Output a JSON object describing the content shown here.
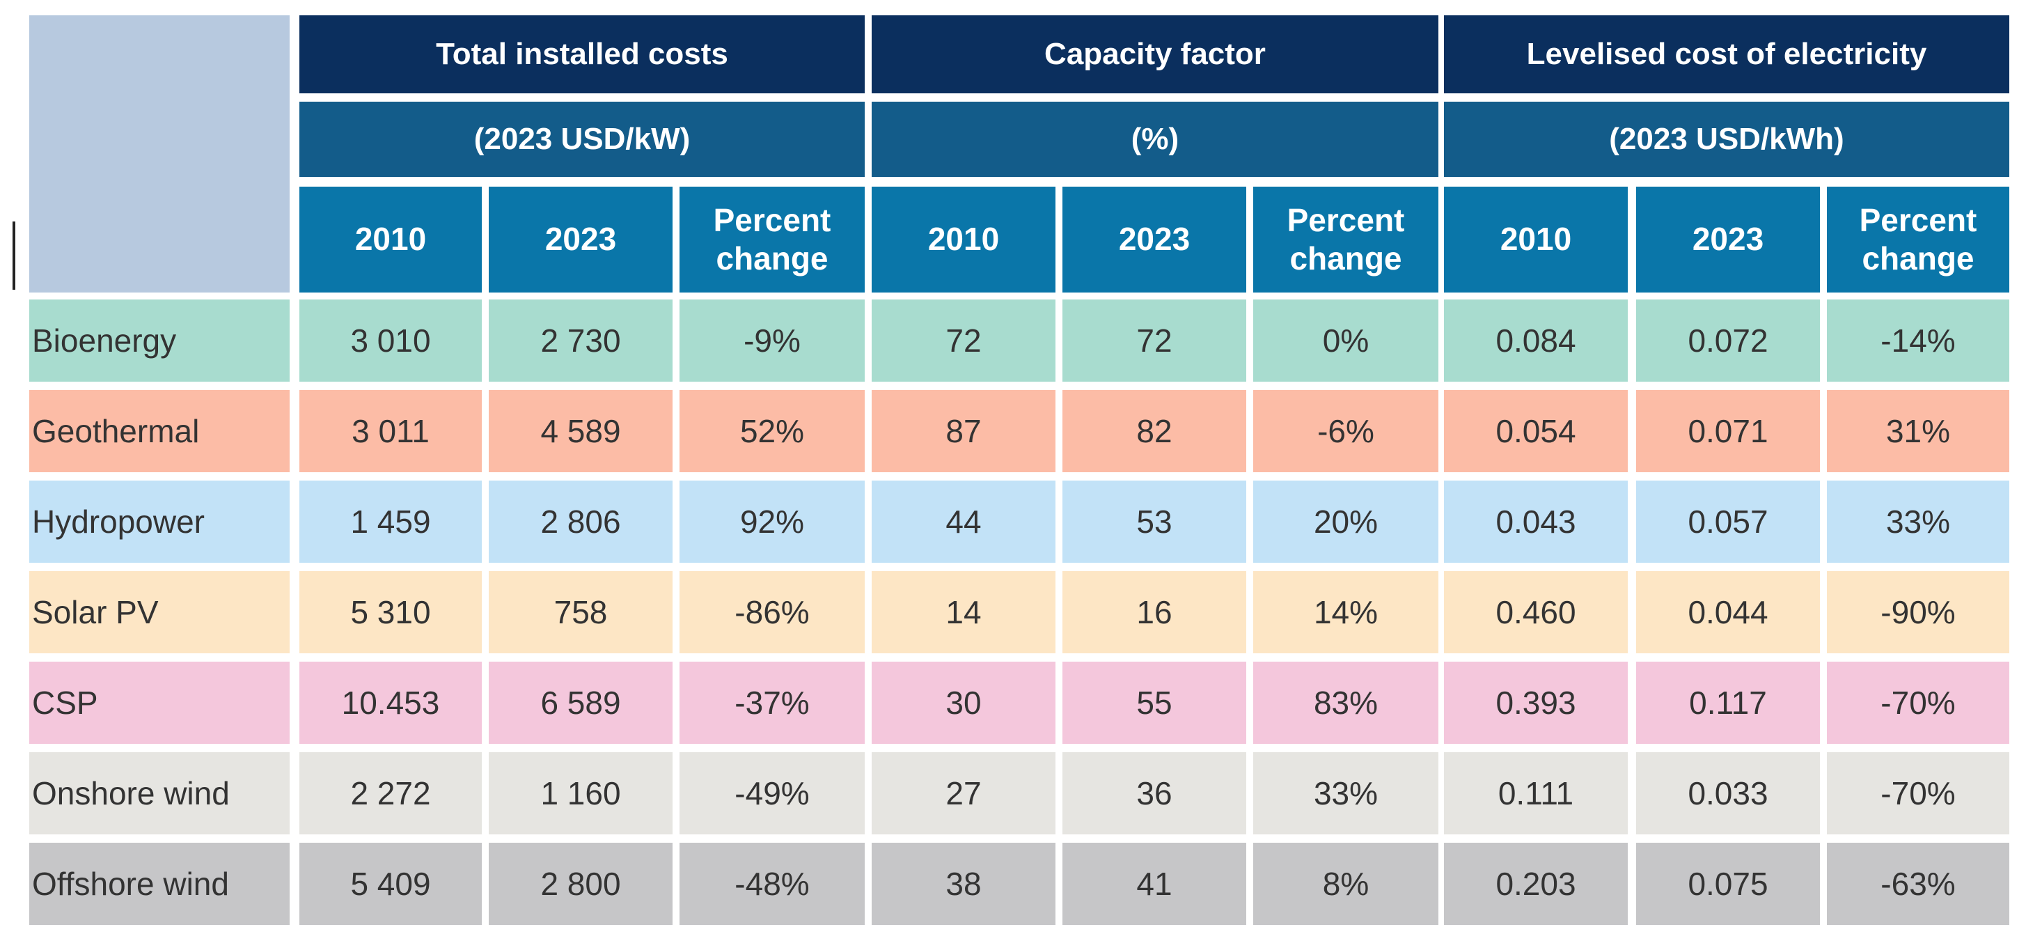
{
  "chart_data": {
    "type": "table",
    "groups": [
      {
        "title": "Total installed costs",
        "unit": "(2023 USD/kW)"
      },
      {
        "title": "Capacity factor",
        "unit": "(%)"
      },
      {
        "title": "Levelised cost of electricity",
        "unit": "(2023 USD/kWh)"
      }
    ],
    "subheaders": [
      "2010",
      "2023",
      "Percent change"
    ],
    "rows": [
      {
        "label": "Bioenergy",
        "color": "#a8dccf",
        "values": [
          "3 010",
          "2 730",
          "-9%",
          "72",
          "72",
          "0%",
          "0.084",
          "0.072",
          "-14%"
        ]
      },
      {
        "label": "Geothermal",
        "color": "#fcbca6",
        "values": [
          "3 011",
          "4 589",
          "52%",
          "87",
          "82",
          "-6%",
          "0.054",
          "0.071",
          "31%"
        ]
      },
      {
        "label": "Hydropower",
        "color": "#c2e2f7",
        "values": [
          "1 459",
          "2 806",
          "92%",
          "44",
          "53",
          "20%",
          "0.043",
          "0.057",
          "33%"
        ]
      },
      {
        "label": "Solar PV",
        "color": "#fde6c5",
        "values": [
          "5 310",
          "758",
          "-86%",
          "14",
          "16",
          "14%",
          "0.460",
          "0.044",
          "-90%"
        ]
      },
      {
        "label": "CSP",
        "color": "#f4c7dc",
        "values": [
          "10.453",
          "6 589",
          "-37%",
          "30",
          "55",
          "83%",
          "0.393",
          "0.117",
          "-70%"
        ]
      },
      {
        "label": "Onshore wind",
        "color": "#e6e5e1",
        "values": [
          "2 272",
          "1 160",
          "-49%",
          "27",
          "36",
          "33%",
          "0.111",
          "0.033",
          "-70%"
        ]
      },
      {
        "label": "Offshore wind",
        "color": "#c6c6c8",
        "values": [
          "5 409",
          "2 800",
          "-48%",
          "38",
          "41",
          "8%",
          "0.203",
          "0.075",
          "-63%"
        ]
      }
    ]
  }
}
